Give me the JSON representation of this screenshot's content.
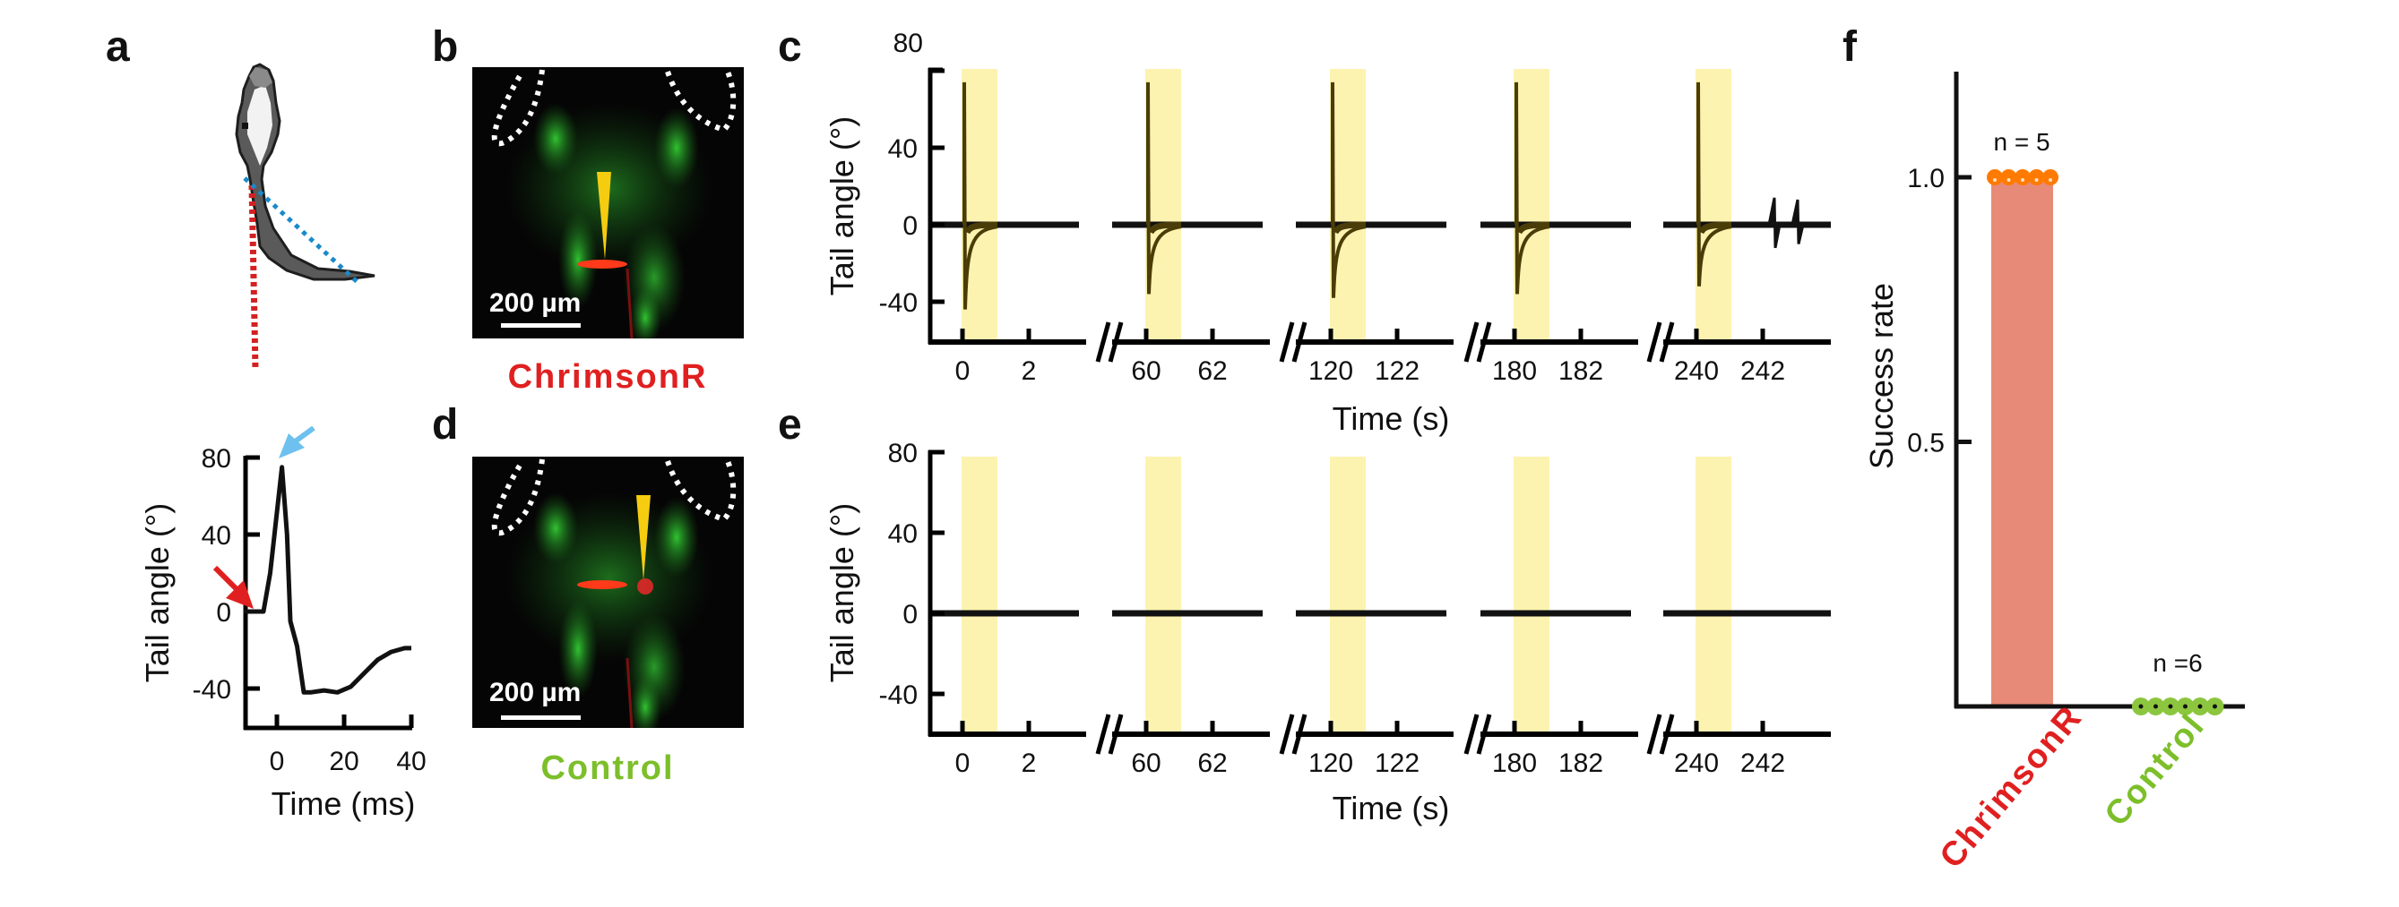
{
  "panels": {
    "a": {
      "letter": "a"
    },
    "b": {
      "letter": "b",
      "scale_bar": "200 µm",
      "condition": "ChrimsonR"
    },
    "c": {
      "letter": "c"
    },
    "d": {
      "letter": "d",
      "scale_bar": "200 µm",
      "condition": "Control"
    },
    "e": {
      "letter": "e"
    },
    "f": {
      "letter": "f"
    }
  },
  "colors": {
    "chrimson": "#e02020",
    "control": "#7cbf2a",
    "stim": "#fdf3b0",
    "bar": "#e88a78",
    "dot_chrimson": "#ff7a00",
    "dot_control": "#8cc63f",
    "trace": "#111111",
    "trace_stim": "#4a3d08",
    "arrow_blue": "#6ec1ef",
    "arrow_red": "#e02020",
    "line_blue": "#1a8ac9",
    "line_red": "#d42020"
  },
  "chart_data": [
    {
      "id": "a",
      "type": "line",
      "xlabel": "Time (ms)",
      "ylabel": "Tail angle (°)",
      "xlim": [
        -10,
        40
      ],
      "ylim": [
        -60,
        80
      ],
      "xticks": [
        "0",
        "20",
        "40"
      ],
      "xtick_values": [
        0,
        20,
        40
      ],
      "yticks": [
        "80",
        "40",
        "0",
        "-40"
      ],
      "ytick_values": [
        80,
        40,
        0,
        -40
      ],
      "x": [
        -10,
        -4,
        -2,
        1.5,
        3,
        4,
        6,
        8,
        10,
        14,
        18,
        22,
        26,
        30,
        34,
        38,
        40
      ],
      "y": [
        0,
        0,
        20,
        75,
        40,
        -5,
        -18,
        -42,
        -42,
        -41,
        -42,
        -39,
        -32,
        -25,
        -21,
        -19,
        -19
      ],
      "annotations": [
        "red-arrow-onset",
        "blue-arrow-peak"
      ]
    },
    {
      "id": "c",
      "type": "line",
      "xlabel": "Time (s)",
      "ylabel": "Tail angle (°)",
      "ylim": [
        -60,
        80
      ],
      "yticks": [
        "80",
        "40",
        "0",
        "-40"
      ],
      "ytick_values": [
        80,
        40,
        0,
        -40
      ],
      "segments": [
        {
          "start": 0,
          "ticks": [
            "0",
            "2"
          ],
          "response": true,
          "min": -44,
          "max": 74
        },
        {
          "start": 60,
          "ticks": [
            "60",
            "62"
          ],
          "response": true,
          "min": -36,
          "max": 74
        },
        {
          "start": 120,
          "ticks": [
            "120",
            "122"
          ],
          "response": true,
          "min": -38,
          "max": 74
        },
        {
          "start": 180,
          "ticks": [
            "180",
            "182"
          ],
          "response": true,
          "min": -36,
          "max": 74
        },
        {
          "start": 240,
          "ticks": [
            "240",
            "242"
          ],
          "response": true,
          "min": -32,
          "max": 74,
          "late_bursts": true
        }
      ],
      "stimulus_duration_s": 1
    },
    {
      "id": "e",
      "type": "line",
      "xlabel": "Time (s)",
      "ylabel": "Tail angle (°)",
      "ylim": [
        -60,
        80
      ],
      "yticks": [
        "80",
        "40",
        "0",
        "-40"
      ],
      "ytick_values": [
        80,
        40,
        0,
        -40
      ],
      "segments": [
        {
          "start": 0,
          "ticks": [
            "0",
            "2"
          ],
          "response": false
        },
        {
          "start": 60,
          "ticks": [
            "60",
            "62"
          ],
          "response": false
        },
        {
          "start": 120,
          "ticks": [
            "120",
            "122"
          ],
          "response": false
        },
        {
          "start": 180,
          "ticks": [
            "180",
            "182"
          ],
          "response": false
        },
        {
          "start": 240,
          "ticks": [
            "240",
            "242"
          ],
          "response": false
        }
      ],
      "stimulus_duration_s": 1
    },
    {
      "id": "f",
      "type": "bar",
      "ylabel": "Success rate",
      "ylim": [
        0,
        1.2
      ],
      "yticks": [
        "1.0",
        "0.5"
      ],
      "ytick_values": [
        1.0,
        0.5
      ],
      "categories": [
        "ChrimsonR",
        "Control"
      ],
      "values": [
        1.0,
        0.0
      ],
      "n_labels": [
        "n = 5",
        "n =6"
      ],
      "points": [
        [
          1,
          1,
          1,
          1,
          1
        ],
        [
          0,
          0,
          0,
          0,
          0,
          0
        ]
      ]
    }
  ]
}
